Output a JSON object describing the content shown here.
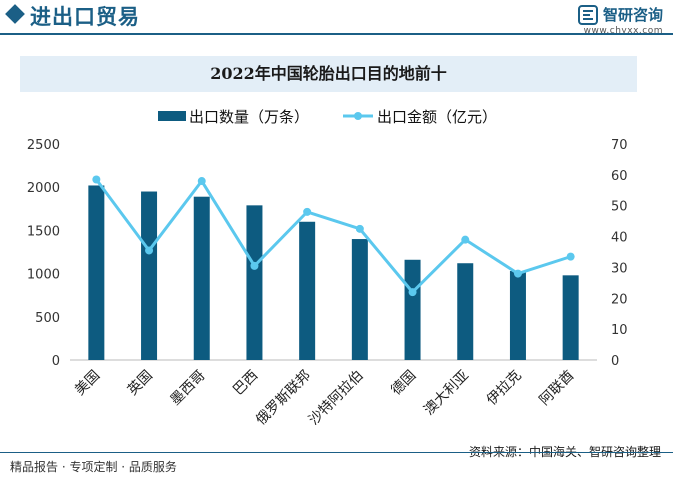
{
  "header": {
    "title": "进出口贸易",
    "brand_name": "智研咨询",
    "brand_url": "www.chyxx.com"
  },
  "colors": {
    "primary": "#1b5f86",
    "bar": "#0d5b80",
    "line": "#5bc8ee",
    "title_bg": "#e3eef7"
  },
  "chart_data": {
    "type": "bar+line",
    "title": "2022年中国轮胎出口目的地前十",
    "categories": [
      "美国",
      "英国",
      "墨西哥",
      "巴西",
      "俄罗斯联邦",
      "沙特阿拉伯",
      "德国",
      "澳大利亚",
      "伊拉克",
      "阿联酋"
    ],
    "series": [
      {
        "name": "出口数量（万条）",
        "type": "bar",
        "axis": "left",
        "values": [
          2020,
          1950,
          1890,
          1790,
          1600,
          1400,
          1160,
          1120,
          1030,
          980
        ]
      },
      {
        "name": "出口金额（亿元）",
        "type": "line",
        "axis": "right",
        "values": [
          58.5,
          35.5,
          58,
          30.5,
          48,
          42.5,
          22,
          39,
          28,
          33.5
        ]
      }
    ],
    "y_left": {
      "min": 0,
      "max": 2500,
      "ticks": [
        "0",
        "500",
        "1000",
        "1500",
        "2000",
        "2500"
      ]
    },
    "y_right": {
      "min": 0,
      "max": 70,
      "ticks": [
        "0",
        "10",
        "20",
        "30",
        "40",
        "50",
        "60",
        "70"
      ]
    },
    "legend_position": "top-center",
    "grid": false
  },
  "footer": {
    "left_text": "精品报告 · 专项定制 · 品质服务",
    "source": "资料来源：中国海关、智研咨询整理"
  }
}
